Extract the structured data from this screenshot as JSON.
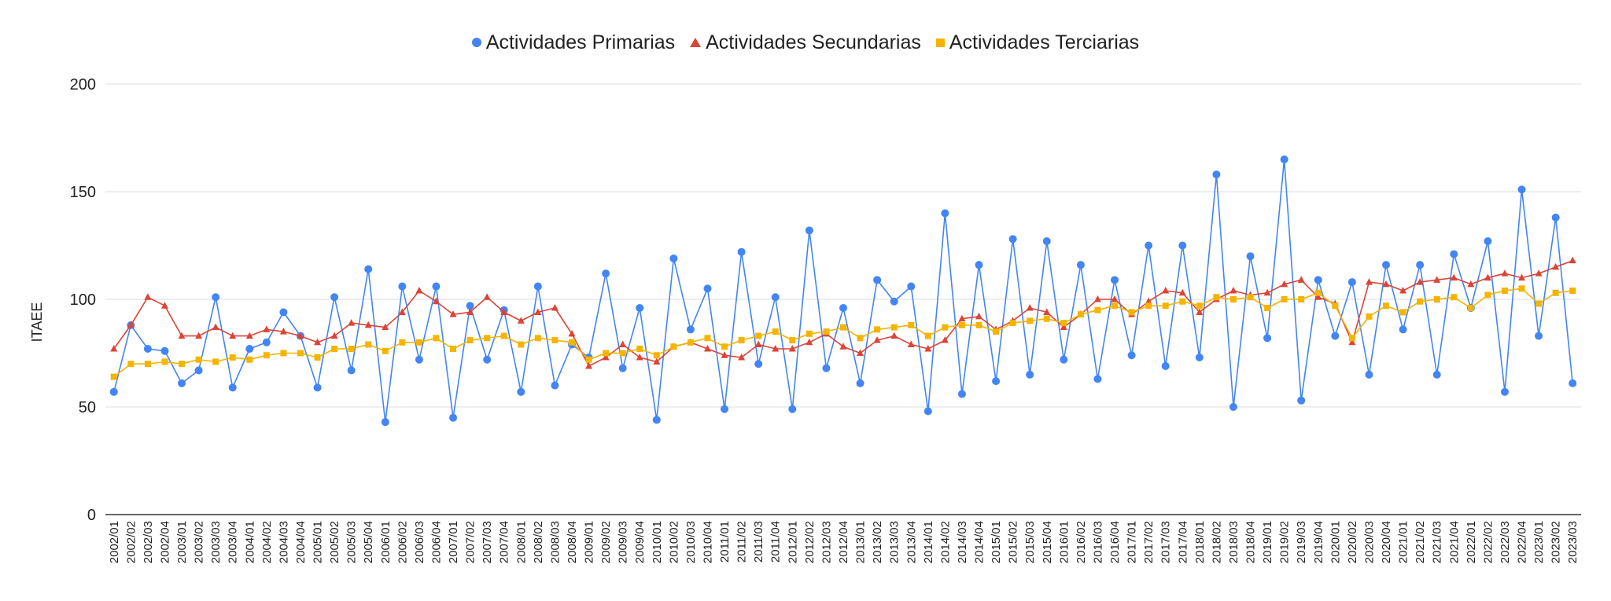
{
  "chart_data": {
    "type": "line",
    "title": "",
    "xlabel": "",
    "ylabel": "ITAEE",
    "ylim": [
      0,
      200
    ],
    "yticks": [
      0,
      50,
      100,
      150,
      200
    ],
    "grid": true,
    "legend_position": "top-center",
    "categories": [
      "2002/01",
      "2002/02",
      "2002/03",
      "2002/04",
      "2003/01",
      "2003/02",
      "2003/03",
      "2003/04",
      "2004/01",
      "2004/02",
      "2004/03",
      "2004/04",
      "2005/01",
      "2005/02",
      "2005/03",
      "2005/04",
      "2006/01",
      "2006/02",
      "2006/03",
      "2006/04",
      "2007/01",
      "2007/02",
      "2007/03",
      "2007/04",
      "2008/01",
      "2008/02",
      "2008/03",
      "2008/04",
      "2009/01",
      "2009/02",
      "2009/03",
      "2009/04",
      "2010/01",
      "2010/02",
      "2010/03",
      "2010/04",
      "2011/01",
      "2011/02",
      "2011/03",
      "2011/04",
      "2012/01",
      "2012/02",
      "2012/03",
      "2012/04",
      "2013/01",
      "2013/02",
      "2013/03",
      "2013/04",
      "2014/01",
      "2014/02",
      "2014/03",
      "2014/04",
      "2015/01",
      "2015/02",
      "2015/03",
      "2015/04",
      "2016/01",
      "2016/02",
      "2016/03",
      "2016/04",
      "2017/01",
      "2017/02",
      "2017/03",
      "2017/04",
      "2018/01",
      "2018/02",
      "2018/03",
      "2018/04",
      "2019/01",
      "2019/02",
      "2019/03",
      "2019/04",
      "2020/01",
      "2020/02",
      "2020/03",
      "2020/04",
      "2021/01",
      "2021/02",
      "2021/03",
      "2021/04",
      "2022/01",
      "2022/02",
      "2022/03",
      "2022/04",
      "2023/01",
      "2023/02",
      "2023/03"
    ],
    "series": [
      {
        "name": "Actividades Primarias",
        "color": "#4285f4",
        "marker": "circle",
        "values": [
          57,
          88,
          77,
          76,
          61,
          67,
          101,
          59,
          77,
          80,
          94,
          83,
          59,
          101,
          67,
          114,
          43,
          106,
          72,
          106,
          45,
          97,
          72,
          95,
          57,
          106,
          60,
          79,
          73,
          112,
          68,
          96,
          44,
          119,
          86,
          105,
          49,
          122,
          70,
          101,
          49,
          132,
          68,
          96,
          61,
          109,
          99,
          106,
          48,
          140,
          56,
          116,
          62,
          128,
          65,
          127,
          72,
          116,
          63,
          109,
          74,
          125,
          69,
          125,
          73,
          158,
          50,
          120,
          82,
          165,
          53,
          109,
          83,
          108,
          65,
          116,
          86,
          116,
          65,
          121,
          96,
          127,
          57,
          151,
          83,
          138,
          61
        ]
      },
      {
        "name": "Actividades Secundarias",
        "color": "#db4437",
        "marker": "triangle",
        "values": [
          77,
          88,
          101,
          97,
          83,
          83,
          87,
          83,
          83,
          86,
          85,
          83,
          80,
          83,
          89,
          88,
          87,
          94,
          104,
          99,
          93,
          94,
          101,
          94,
          90,
          94,
          96,
          84,
          69,
          73,
          79,
          73,
          71,
          78,
          80,
          77,
          74,
          73,
          79,
          77,
          77,
          80,
          84,
          78,
          75,
          81,
          83,
          79,
          77,
          81,
          91,
          92,
          86,
          90,
          96,
          94,
          87,
          93,
          100,
          100,
          93,
          99,
          104,
          103,
          94,
          100,
          104,
          102,
          103,
          107,
          109,
          101,
          98,
          80,
          108,
          107,
          104,
          108,
          109,
          110,
          107,
          110,
          112,
          110,
          112,
          115,
          118
        ]
      },
      {
        "name": "Actividades Terciarias",
        "color": "#f4b400",
        "marker": "square",
        "values": [
          64,
          70,
          70,
          71,
          70,
          72,
          71,
          73,
          72,
          74,
          75,
          75,
          73,
          77,
          77,
          79,
          76,
          80,
          80,
          82,
          77,
          81,
          82,
          83,
          79,
          82,
          81,
          80,
          72,
          75,
          75,
          77,
          74,
          78,
          80,
          82,
          78,
          81,
          83,
          85,
          81,
          84,
          85,
          87,
          82,
          86,
          87,
          88,
          83,
          87,
          88,
          88,
          85,
          89,
          90,
          91,
          89,
          93,
          95,
          97,
          94,
          97,
          97,
          99,
          97,
          101,
          100,
          101,
          96,
          100,
          100,
          103,
          97,
          82,
          92,
          97,
          94,
          99,
          100,
          101,
          96,
          102,
          104,
          105,
          98,
          103,
          104
        ]
      }
    ]
  }
}
